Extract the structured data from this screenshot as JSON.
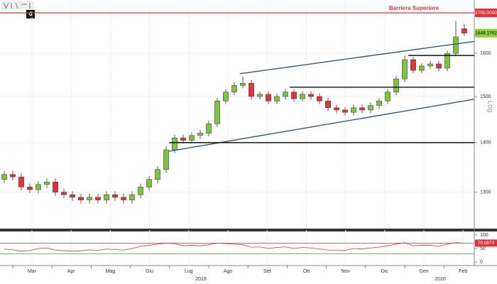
{
  "toolbar": {
    "label": "0"
  },
  "chart_data": [
    {
      "type": "candlestick",
      "log": true,
      "scale_label": "Log",
      "ylim": [
        1231,
        1733
      ],
      "yticks": [
        1300,
        1400,
        1500,
        1600
      ],
      "grid": true,
      "up_color": "#7fc241",
      "down_color": "#e3323b",
      "x_labels": [
        "Mar",
        "Apr",
        "Mag",
        "Giu",
        "Lug",
        "Ago",
        "Set",
        "Ott",
        "Nov",
        "Dic",
        "Gen",
        "Feb"
      ],
      "year_labels": [
        "2019",
        "2020"
      ],
      "barrier": {
        "name": "Barriera Superiore",
        "value": 1700,
        "label": "1700.0000",
        "color": "#e3323b"
      },
      "last_color": "#8cd13c",
      "lines": [
        {
          "color": "#3b5873",
          "values": [
            1552,
            1629
          ]
        },
        {
          "color": "#3b5873",
          "values": [
            1382,
            1494
          ]
        },
        {
          "color": "#111111",
          "values": [
            1595,
            1595
          ]
        },
        {
          "color": "#111111",
          "values": [
            1521,
            1521
          ]
        },
        {
          "color": "#111111",
          "values": [
            1400,
            1400
          ]
        }
      ],
      "candles": {
        "open": [
          1325,
          1335,
          1330,
          1310,
          1305,
          1315,
          1320,
          1300,
          1295,
          1290,
          1285,
          1290,
          1285,
          1295,
          1290,
          1285,
          1295,
          1310,
          1325,
          1345,
          1385,
          1410,
          1405,
          1415,
          1420,
          1440,
          1490,
          1510,
          1525,
          1530,
          1500,
          1505,
          1490,
          1500,
          1510,
          1495,
          1505,
          1500,
          1490,
          1475,
          1470,
          1465,
          1475,
          1470,
          1480,
          1490,
          1510,
          1540,
          1585,
          1560,
          1570,
          1575,
          1565,
          1600,
          1660
        ],
        "high": [
          1342,
          1342,
          1337,
          1317,
          1322,
          1327,
          1327,
          1307,
          1302,
          1297,
          1297,
          1297,
          1302,
          1302,
          1297,
          1302,
          1317,
          1332,
          1352,
          1392,
          1417,
          1417,
          1422,
          1427,
          1447,
          1497,
          1517,
          1532,
          1545,
          1537,
          1512,
          1512,
          1507,
          1517,
          1517,
          1512,
          1512,
          1507,
          1497,
          1482,
          1477,
          1482,
          1482,
          1487,
          1497,
          1517,
          1547,
          1595,
          1592,
          1577,
          1582,
          1582,
          1607,
          1680,
          1672
        ],
        "low": [
          1318,
          1323,
          1303,
          1298,
          1298,
          1308,
          1293,
          1288,
          1283,
          1278,
          1278,
          1278,
          1278,
          1283,
          1278,
          1278,
          1288,
          1303,
          1318,
          1338,
          1378,
          1398,
          1398,
          1408,
          1413,
          1433,
          1483,
          1503,
          1518,
          1493,
          1493,
          1483,
          1483,
          1493,
          1488,
          1488,
          1493,
          1483,
          1468,
          1463,
          1458,
          1458,
          1463,
          1463,
          1473,
          1483,
          1503,
          1533,
          1553,
          1553,
          1563,
          1558,
          1558,
          1593,
          1642
        ],
        "close": [
          1335,
          1330,
          1310,
          1305,
          1315,
          1320,
          1300,
          1295,
          1290,
          1285,
          1290,
          1285,
          1295,
          1290,
          1285,
          1295,
          1310,
          1325,
          1345,
          1385,
          1410,
          1405,
          1415,
          1420,
          1440,
          1490,
          1510,
          1525,
          1530,
          1500,
          1505,
          1490,
          1500,
          1510,
          1495,
          1505,
          1500,
          1490,
          1475,
          1470,
          1465,
          1475,
          1470,
          1480,
          1490,
          1510,
          1540,
          1585,
          1560,
          1570,
          1575,
          1565,
          1600,
          1640,
          1649.1702
        ]
      }
    },
    {
      "type": "line",
      "ylim": [
        0,
        100
      ],
      "yticks": [
        0,
        50,
        100
      ],
      "levels": [
        {
          "value": 70,
          "color": "#e3323b"
        },
        {
          "value": 30,
          "color": "#3cb043"
        }
      ],
      "series": [
        {
          "color": "#e3323b",
          "values": [
            48,
            45,
            40,
            42,
            50,
            52,
            44,
            42,
            40,
            41,
            45,
            43,
            48,
            46,
            44,
            50,
            58,
            62,
            66,
            70,
            68,
            60,
            62,
            60,
            64,
            70,
            68,
            66,
            64,
            55,
            56,
            50,
            54,
            56,
            50,
            54,
            52,
            48,
            44,
            44,
            43,
            50,
            48,
            52,
            55,
            60,
            66,
            72,
            60,
            62,
            62,
            58,
            66,
            72,
            70.0873
          ]
        }
      ]
    }
  ]
}
